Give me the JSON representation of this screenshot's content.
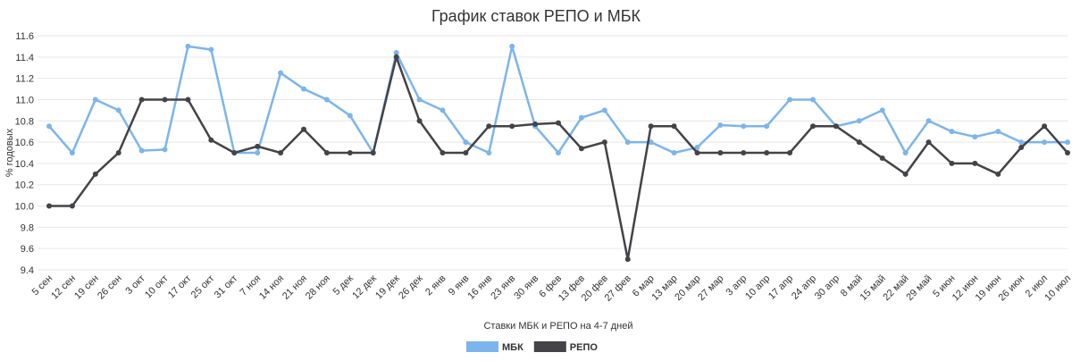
{
  "chart_data": {
    "type": "line",
    "title": "График ставок РЕПО и МБК",
    "x_label": "Ставки МБК и РЕПО на 4-7 дней",
    "y_label": "% годовых",
    "categories": [
      "5 сен",
      "12 сен",
      "19 сен",
      "26 сен",
      "3 окт",
      "10 окт",
      "17 окт",
      "25 окт",
      "31 окт",
      "7 ноя",
      "14 ноя",
      "21 ноя",
      "28 ноя",
      "5 дек",
      "12 дек",
      "19 дек",
      "26 дек",
      "2 янв",
      "9 янв",
      "16 янв",
      "23 янв",
      "30 янв",
      "6 фев",
      "13 фев",
      "20 фев",
      "27 фев",
      "6 мар",
      "13 мар",
      "20 мар",
      "27 мар",
      "3 апр",
      "10 апр",
      "17 апр",
      "24 апр",
      "30 апр",
      "8 май",
      "15 май",
      "22 май",
      "29 май",
      "5 июн",
      "12 июн",
      "19 июн",
      "26 июн",
      "2 июл",
      "10 июл"
    ],
    "series": [
      {
        "name": "МБК",
        "color": "#7cb5ec",
        "values": [
          10.75,
          10.5,
          11.0,
          10.9,
          10.52,
          10.53,
          11.5,
          11.47,
          10.5,
          10.5,
          11.25,
          11.1,
          11.0,
          10.85,
          10.5,
          11.44,
          11.0,
          10.9,
          10.6,
          10.5,
          11.5,
          10.75,
          10.5,
          10.83,
          10.9,
          10.6,
          10.6,
          10.5,
          10.55,
          10.76,
          10.75,
          10.75,
          11.0,
          11.0,
          10.75,
          10.8,
          10.9,
          10.5,
          10.8,
          10.7,
          10.65,
          10.7,
          10.6,
          10.6,
          10.6
        ]
      },
      {
        "name": "РЕПО",
        "color": "#434348",
        "values": [
          10.0,
          10.0,
          10.3,
          10.5,
          11.0,
          11.0,
          11.0,
          10.62,
          10.5,
          10.56,
          10.5,
          10.72,
          10.5,
          10.5,
          10.5,
          11.4,
          10.8,
          10.5,
          10.5,
          10.75,
          10.75,
          10.77,
          10.78,
          10.54,
          10.6,
          9.5,
          10.75,
          10.75,
          10.5,
          10.5,
          10.5,
          10.5,
          10.5,
          10.75,
          10.75,
          10.6,
          10.45,
          10.3,
          10.6,
          10.4,
          10.4,
          10.3,
          10.55,
          10.75,
          10.5
        ]
      }
    ],
    "ylim": [
      9.4,
      11.6
    ],
    "yticks": [
      9.4,
      9.6,
      9.8,
      {
        "value": 10,
        "label": "10.0"
      },
      10.2,
      10.4,
      10.6,
      10.8,
      {
        "value": 11,
        "label": "11.0"
      },
      11.2,
      11.4,
      11.6
    ],
    "grid": true
  }
}
